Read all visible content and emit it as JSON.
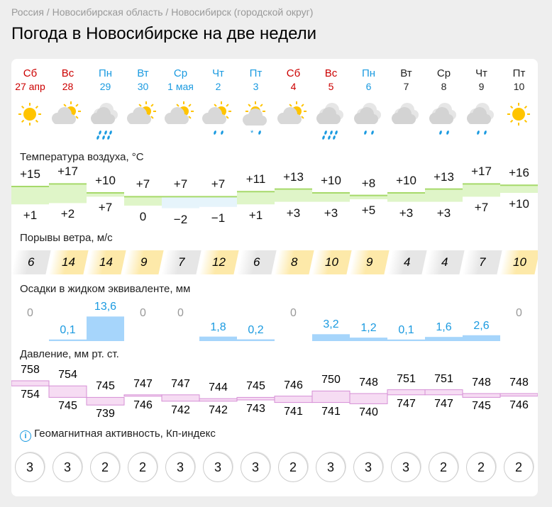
{
  "breadcrumb": [
    "Россия",
    "Новосибирская область",
    "Новосибирск (городской округ)"
  ],
  "title": "Погода в Новосибирске на две недели",
  "colors": {
    "weekend": "#cc0000",
    "weekday": "#1a9ae0",
    "nodata": "#222222",
    "temp": "#dff5c8",
    "pressure": "#f6dcf3",
    "precip": "#a6d5fb",
    "wind_low": "#e6e6e6",
    "wind_high": "#fde9a9"
  },
  "days": [
    {
      "dow": "Сб",
      "date": "27 апр",
      "type": "weekend",
      "icon": "sun-icon"
    },
    {
      "dow": "Вс",
      "date": "28",
      "type": "weekend",
      "icon": "partly-cloudy-icon"
    },
    {
      "dow": "Пн",
      "date": "29",
      "type": "weekday",
      "icon": "cloud-rain-icon"
    },
    {
      "dow": "Вт",
      "date": "30",
      "type": "weekday",
      "icon": "partly-cloudy-icon"
    },
    {
      "dow": "Ср",
      "date": "1 мая",
      "type": "weekday",
      "icon": "partly-cloudy-icon"
    },
    {
      "dow": "Чт",
      "date": "2",
      "type": "weekday",
      "icon": "partly-cloudy-rain-icon"
    },
    {
      "dow": "Пт",
      "date": "3",
      "type": "weekday",
      "icon": "partly-cloudy-sleet-icon"
    },
    {
      "dow": "Сб",
      "date": "4",
      "type": "weekend",
      "icon": "partly-cloudy-icon"
    },
    {
      "dow": "Вс",
      "date": "5",
      "type": "weekend",
      "icon": "cloud-rain-icon"
    },
    {
      "dow": "Пн",
      "date": "6",
      "type": "weekday",
      "icon": "cloud-light-rain-icon"
    },
    {
      "dow": "Вт",
      "date": "7",
      "type": "nodata",
      "icon": "cloudy-icon"
    },
    {
      "dow": "Ср",
      "date": "8",
      "type": "nodata",
      "icon": "cloud-light-rain-icon"
    },
    {
      "dow": "Чт",
      "date": "9",
      "type": "nodata",
      "icon": "cloud-light-rain-icon"
    },
    {
      "dow": "Пт",
      "date": "10",
      "type": "nodata",
      "icon": "sun-icon"
    }
  ],
  "temperature": {
    "label": "Температура воздуха, °C",
    "max": [
      "+15",
      "+17",
      "+10",
      "+7",
      "+7",
      "+7",
      "+11",
      "+13",
      "+10",
      "+8",
      "+10",
      "+13",
      "+17",
      "+16"
    ],
    "min": [
      "+1",
      "+2",
      "+7",
      "0",
      "−2",
      "−1",
      "+1",
      "+3",
      "+3",
      "+5",
      "+3",
      "+3",
      "+7",
      "+10"
    ]
  },
  "wind": {
    "label": "Порывы ветра, м/с",
    "values": [
      "6",
      "14",
      "14",
      "9",
      "7",
      "12",
      "6",
      "8",
      "10",
      "9",
      "4",
      "4",
      "7",
      "10"
    ]
  },
  "precip": {
    "label": "Осадки в жидком эквиваленте, мм",
    "values": [
      "0",
      "0,1",
      "13,6",
      "0",
      "0",
      "1,8",
      "0,2",
      "0",
      "3,2",
      "1,2",
      "0,1",
      "1,6",
      "2,6",
      "0"
    ]
  },
  "pressure": {
    "label": "Давление, мм рт. ст.",
    "max": [
      "758",
      "754",
      "745",
      "747",
      "747",
      "744",
      "745",
      "746",
      "750",
      "748",
      "751",
      "751",
      "748",
      "748"
    ],
    "min": [
      "754",
      "745",
      "739",
      "746",
      "742",
      "742",
      "743",
      "741",
      "741",
      "740",
      "747",
      "747",
      "745",
      "746"
    ]
  },
  "geomagnetic": {
    "label": "Геомагнитная активность, Кп-индекс",
    "values": [
      "3",
      "3",
      "2",
      "2",
      "3",
      "3",
      "3",
      "2",
      "3",
      "3",
      "3",
      "2",
      "2",
      "2"
    ]
  }
}
